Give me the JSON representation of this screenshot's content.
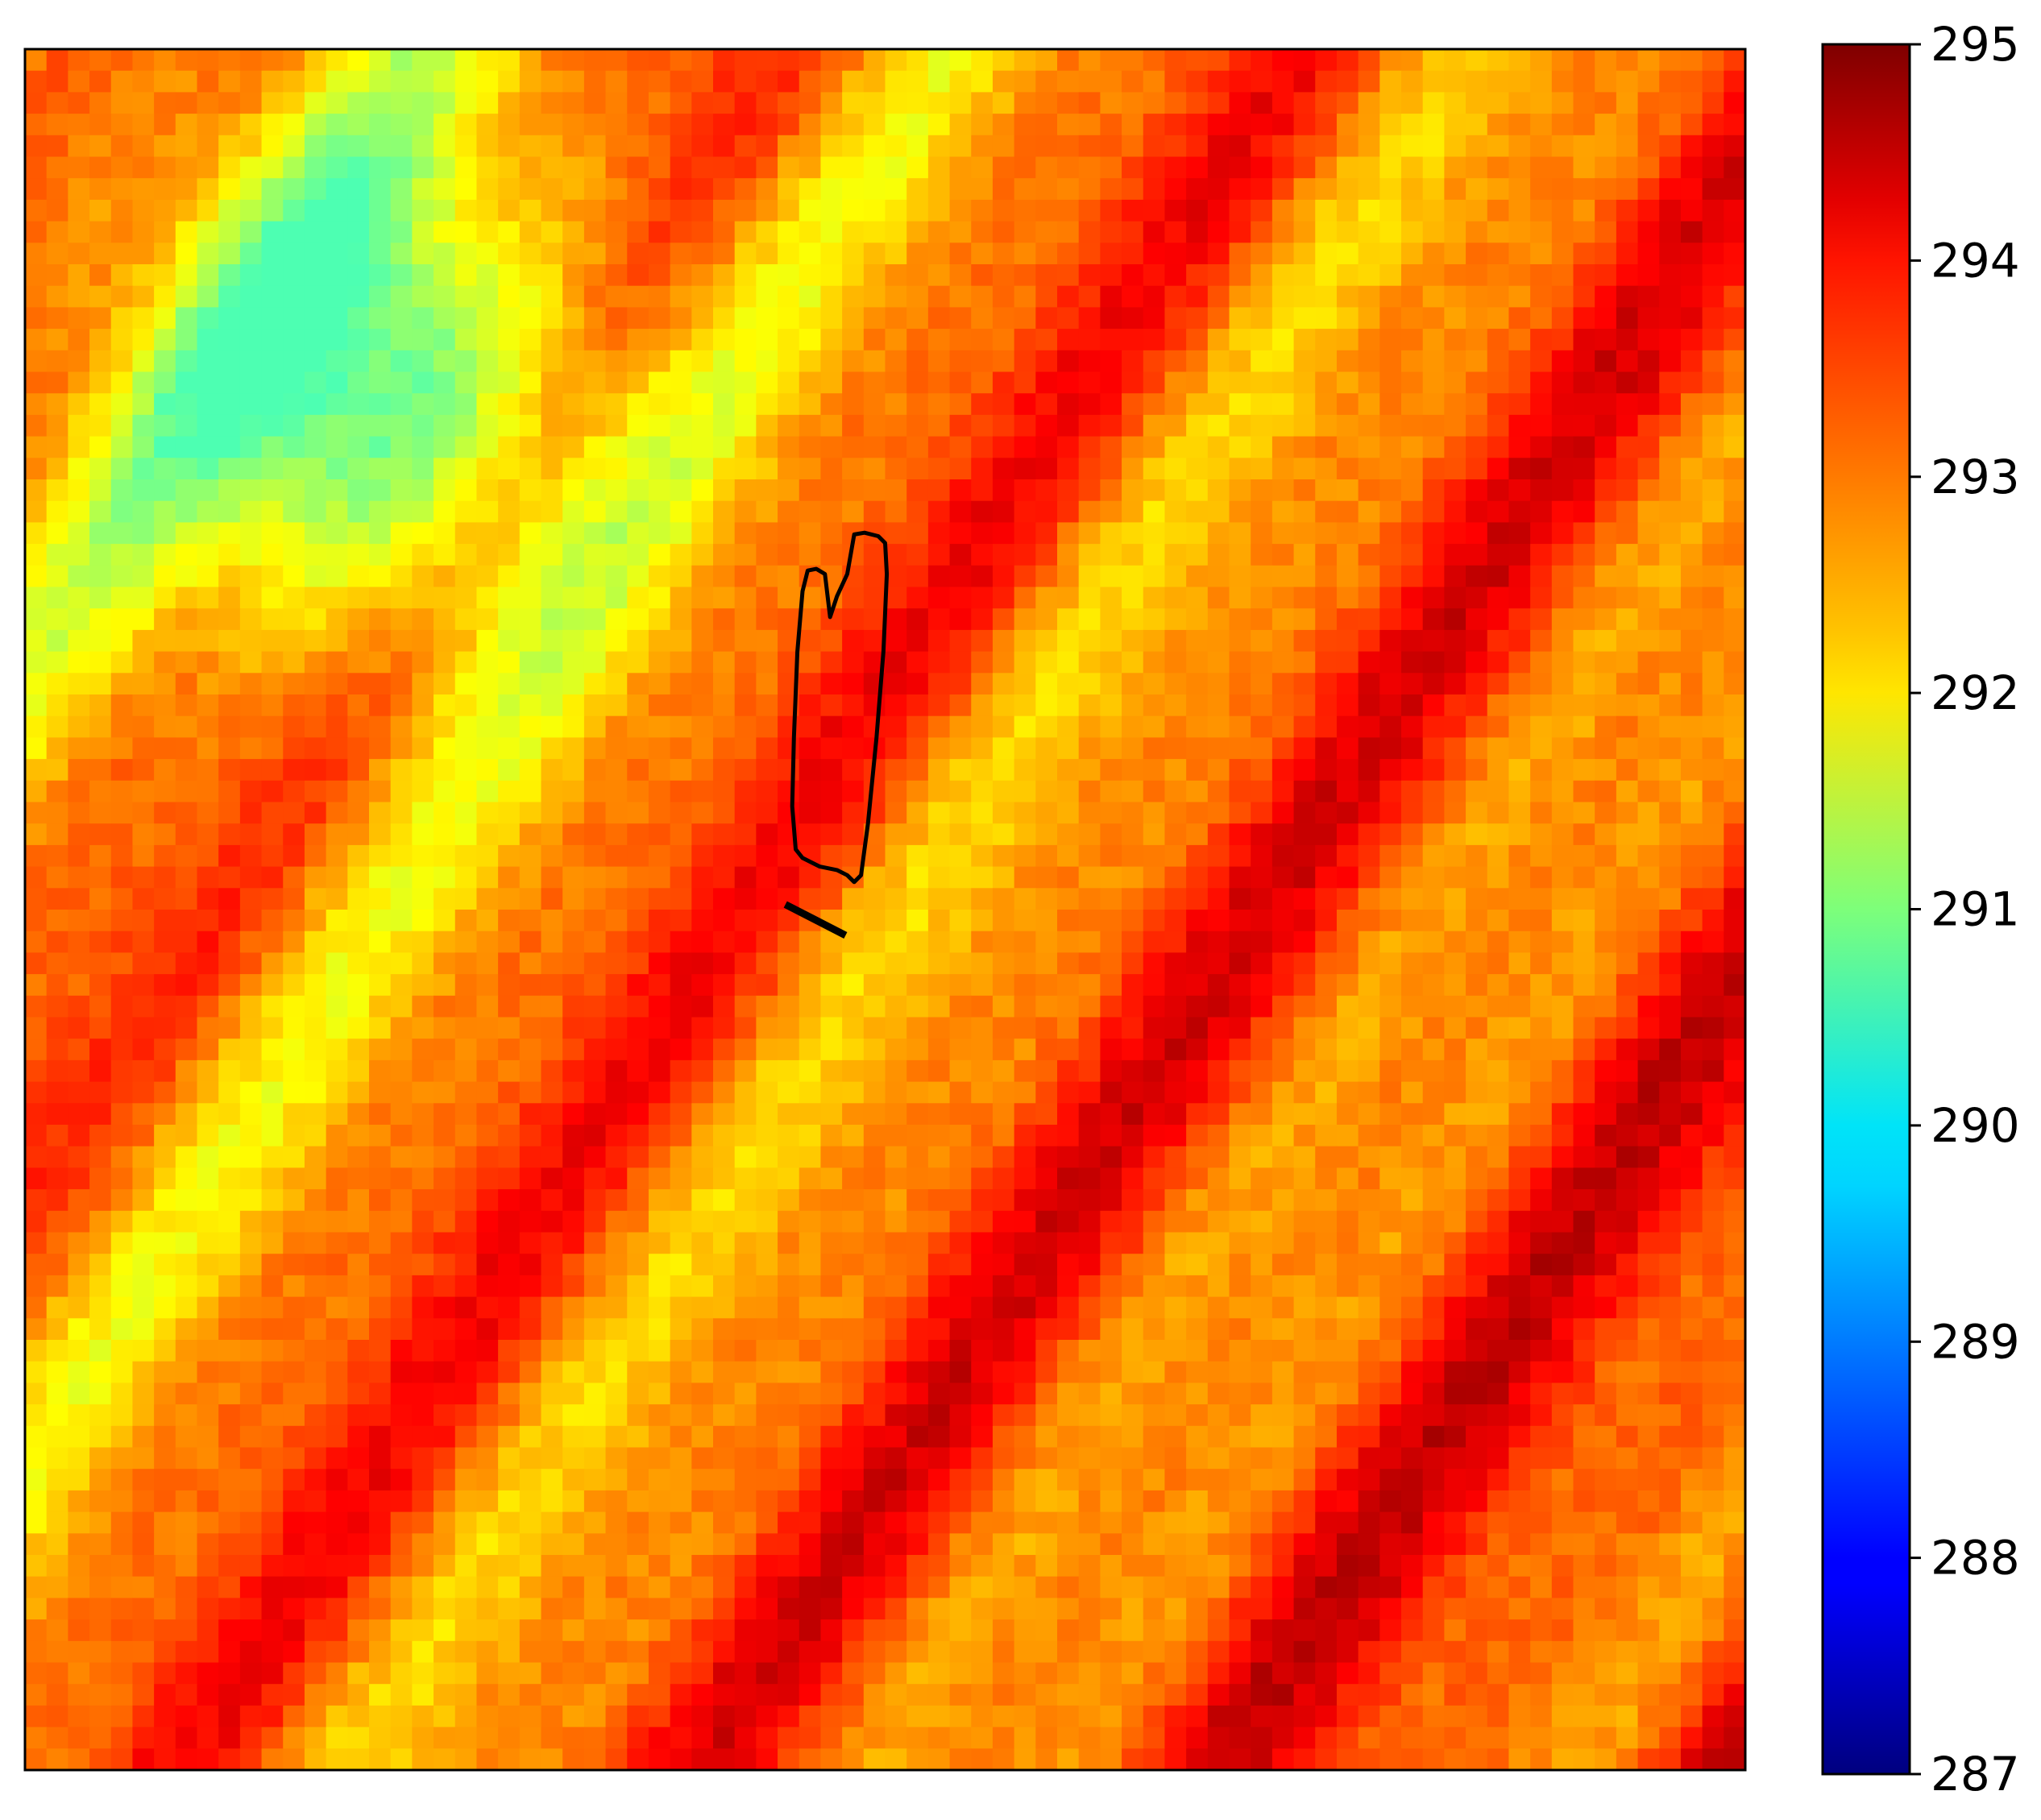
{
  "chart_data": {
    "type": "heatmap",
    "title": "",
    "xlabel": "",
    "ylabel": "",
    "colormap": "jet",
    "vmin": 287,
    "vmax": 295,
    "grid": false,
    "x_ticks": [],
    "y_ticks": [],
    "colorbar": {
      "location": "right",
      "ticks": [
        287,
        288,
        289,
        290,
        291,
        292,
        293,
        294,
        295
      ],
      "tick_labels": [
        "287",
        "288",
        "289",
        "290",
        "291",
        "292",
        "293",
        "294",
        "295"
      ]
    },
    "pixel_grid": {
      "cols": 80,
      "rows": 80
    },
    "stripes": [
      {
        "offset": 0.0,
        "delta": -1.2
      },
      {
        "offset": 0.12,
        "delta": 0.9
      },
      {
        "offset": 0.25,
        "delta": -0.6
      },
      {
        "offset": 0.38,
        "delta": 1.0
      },
      {
        "offset": 0.5,
        "delta": -0.3
      },
      {
        "offset": 0.62,
        "delta": 1.3
      },
      {
        "offset": 0.76,
        "delta": -0.4
      },
      {
        "offset": 0.9,
        "delta": 0.7
      }
    ],
    "cool_patches": [
      {
        "label": "upper-left cool region",
        "value": 291.0
      }
    ],
    "warmest_value": 294.9,
    "coolest_value": 290.6,
    "overlay": {
      "closed_contour_points": [
        [
          0.455,
          0.303
        ],
        [
          0.46,
          0.302
        ],
        [
          0.465,
          0.305
        ],
        [
          0.468,
          0.33
        ],
        [
          0.472,
          0.318
        ],
        [
          0.478,
          0.305
        ],
        [
          0.482,
          0.282
        ],
        [
          0.488,
          0.281
        ],
        [
          0.496,
          0.283
        ],
        [
          0.5,
          0.287
        ],
        [
          0.501,
          0.305
        ],
        [
          0.499,
          0.35
        ],
        [
          0.495,
          0.4
        ],
        [
          0.49,
          0.45
        ],
        [
          0.486,
          0.48
        ],
        [
          0.482,
          0.484
        ],
        [
          0.478,
          0.48
        ],
        [
          0.472,
          0.477
        ],
        [
          0.462,
          0.475
        ],
        [
          0.452,
          0.47
        ],
        [
          0.448,
          0.465
        ],
        [
          0.446,
          0.44
        ],
        [
          0.447,
          0.4
        ],
        [
          0.449,
          0.35
        ],
        [
          0.452,
          0.315
        ]
      ],
      "segment": [
        [
          0.442,
          0.497
        ],
        [
          0.477,
          0.515
        ]
      ]
    }
  }
}
